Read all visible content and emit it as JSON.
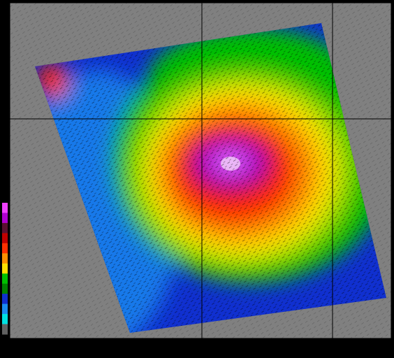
{
  "image": {
    "background": "#808080",
    "swath_colors": [
      "#1030d0",
      "#1a8cf0",
      "#00c000",
      "#a0e000",
      "#ffe000",
      "#ff9000",
      "#ff2a00",
      "#c01040",
      "#b000d0",
      "#e060ff",
      "#ffffff"
    ],
    "colorbar_colors": [
      "#f040ff",
      "#b000d0",
      "#5a1030",
      "#c00000",
      "#ff3000",
      "#ff9000",
      "#ffe000",
      "#00c000",
      "#008000",
      "#1030d0",
      "#1a8cf0",
      "#00e0e0",
      "#606060"
    ]
  }
}
